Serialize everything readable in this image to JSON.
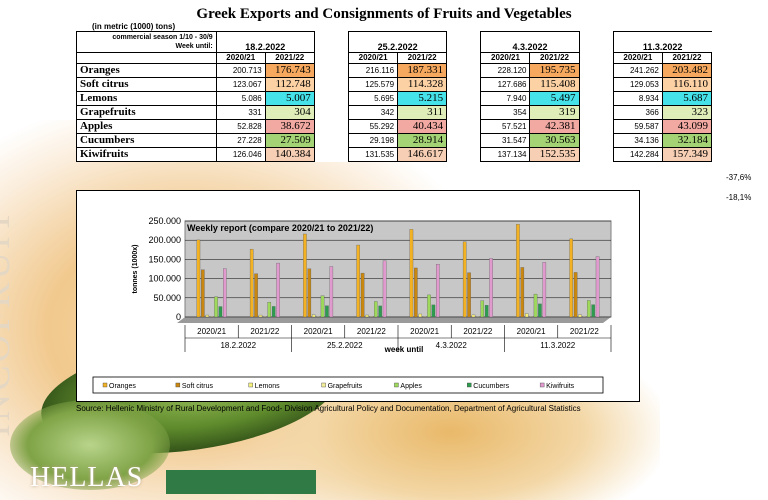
{
  "title": "Greek Exports and Consignments of Fruits and Vegetables",
  "unit_note": "(in metric (1000) tons)",
  "season_note": "commercial season 1/10 - 30/9",
  "week_until_label": "Week until:",
  "dates": [
    "18.2.2022",
    "25.2.2022",
    "4.3.2022",
    "11.3.2022"
  ],
  "seasons": [
    "2020/21",
    "2021/22"
  ],
  "table": {
    "rows": [
      {
        "product": "Oranges",
        "values": [
          "200.713",
          "176.743",
          "216.116",
          "187.331",
          "228.120",
          "195.735",
          "241.262",
          "203.482"
        ],
        "color": "#f6a95e"
      },
      {
        "product": "Soft citrus",
        "values": [
          "123.067",
          "112.748",
          "125.579",
          "114.328",
          "127.686",
          "115.408",
          "129.053",
          "116.110"
        ],
        "color": "#fcd2a5"
      },
      {
        "product": "Lemons",
        "values": [
          "5.086",
          "5.007",
          "5.695",
          "5.215",
          "7.940",
          "5.497",
          "8.934",
          "5.687"
        ],
        "color": "#45e2ea"
      },
      {
        "product": "Grapefruits",
        "values": [
          "331",
          "304",
          "342",
          "311",
          "354",
          "319",
          "366",
          "323"
        ],
        "color": "#dfeeb9"
      },
      {
        "product": "Apples",
        "values": [
          "52.828",
          "38.672",
          "55.292",
          "40.434",
          "57.521",
          "42.381",
          "59.587",
          "43.099"
        ],
        "color": "#f2a9a2"
      },
      {
        "product": "Cucumbers",
        "values": [
          "27.228",
          "27.509",
          "29.198",
          "28.914",
          "31.547",
          "30.563",
          "34.136",
          "32.184"
        ],
        "color": "#a3d374"
      },
      {
        "product": "Kiwifruits",
        "values": [
          "126.046",
          "140.384",
          "131.535",
          "146.617",
          "137.134",
          "152.535",
          "142.284",
          "157.349"
        ],
        "color": "#f6cfb4"
      }
    ]
  },
  "side_percentages": [
    "-37,6%",
    "-18,1%"
  ],
  "chart_data": {
    "type": "bar",
    "title": "Weekly report (compare 2020/21 to 2021/22)",
    "ylabel": "tonnes (1000x)",
    "xlabel": "week until",
    "ylim": [
      0,
      250000
    ],
    "yticks": [
      "0",
      "50.000",
      "100.000",
      "150.000",
      "200.000",
      "250.000"
    ],
    "dates": [
      "18.2.2022",
      "25.2.2022",
      "4.3.2022",
      "11.3.2022"
    ],
    "categories": [
      "2020/21",
      "2021/22",
      "2020/21",
      "2021/22",
      "2020/21",
      "2021/22",
      "2020/21",
      "2021/22"
    ],
    "series": [
      {
        "name": "Oranges",
        "color": "#f2b224",
        "values": [
          200713,
          176743,
          216116,
          187331,
          228120,
          195735,
          241262,
          203482
        ]
      },
      {
        "name": "Soft citrus",
        "color": "#c98710",
        "values": [
          123067,
          112748,
          125579,
          114328,
          127686,
          115408,
          129053,
          116110
        ]
      },
      {
        "name": "Lemons",
        "color": "#f7f07a",
        "values": [
          5086,
          5007,
          5695,
          5215,
          7940,
          5497,
          8934,
          5687
        ]
      },
      {
        "name": "Grapefruits",
        "color": "#f4ee9a",
        "values": [
          331,
          304,
          342,
          311,
          354,
          319,
          366,
          323
        ]
      },
      {
        "name": "Apples",
        "color": "#9ed95b",
        "values": [
          52828,
          38672,
          55292,
          40434,
          57521,
          42381,
          59587,
          43099
        ]
      },
      {
        "name": "Cucumbers",
        "color": "#2e9c4e",
        "values": [
          27228,
          27509,
          29198,
          28914,
          31547,
          30563,
          34136,
          32184
        ]
      },
      {
        "name": "Kiwifruits",
        "color": "#e09acd",
        "values": [
          126046,
          140384,
          131535,
          146617,
          137134,
          152535,
          142284,
          157349
        ]
      }
    ],
    "legend": "bottom",
    "grid": true
  },
  "source": "Source: Hellenic Ministry of Rural Development and Food- Division Agricultural Policy and Documentation, Department of Agricultural Statistics",
  "watermark": "INCOFRUIT",
  "brand": "HELLAS"
}
